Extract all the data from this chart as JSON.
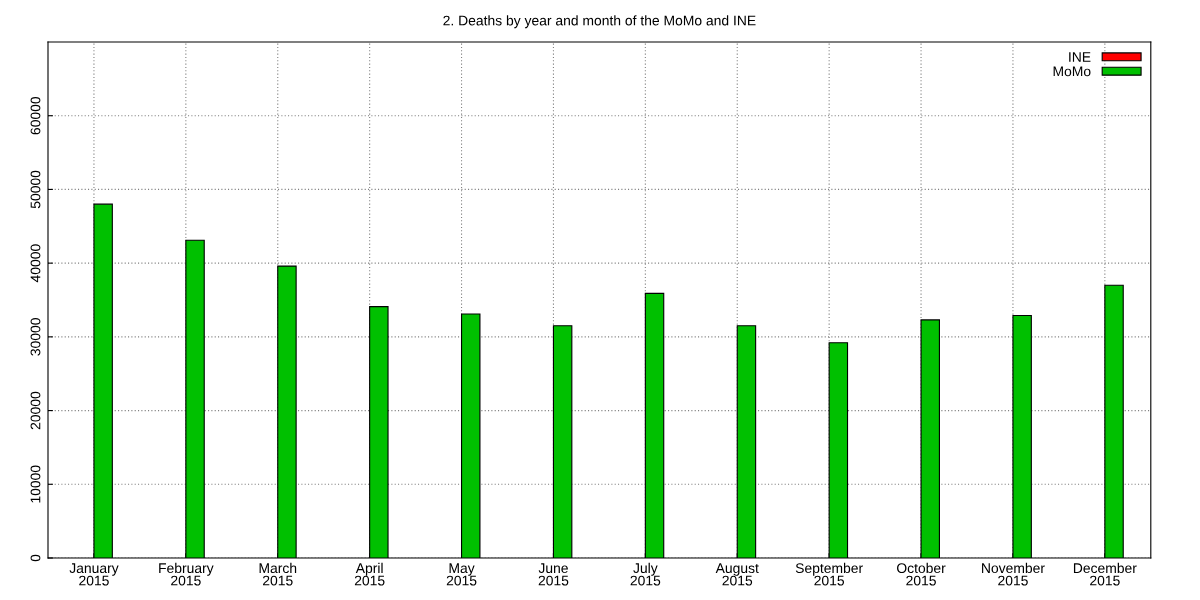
{
  "chart_data": {
    "type": "bar",
    "title": "2. Deaths by year and month of the MoMo and INE",
    "categories": [
      "January\n2015",
      "February\n2015",
      "March\n2015",
      "April\n2015",
      "May\n2015",
      "June\n2015",
      "July\n2015",
      "August\n2015",
      "September\n2015",
      "October\n2015",
      "November\n2015",
      "December\n2015"
    ],
    "series": [
      {
        "name": "INE",
        "color": "#ff0000",
        "values": [
          null,
          null,
          null,
          null,
          null,
          null,
          null,
          null,
          null,
          null,
          null,
          null
        ]
      },
      {
        "name": "MoMo",
        "color": "#00c000",
        "values": [
          48000,
          43100,
          39600,
          34100,
          33100,
          31500,
          35900,
          31500,
          29200,
          32300,
          32900,
          37000
        ]
      }
    ],
    "ylim": [
      0,
      70000
    ],
    "yticks": [
      0,
      10000,
      20000,
      30000,
      40000,
      50000,
      60000
    ],
    "grid": true,
    "legend": "top right"
  }
}
